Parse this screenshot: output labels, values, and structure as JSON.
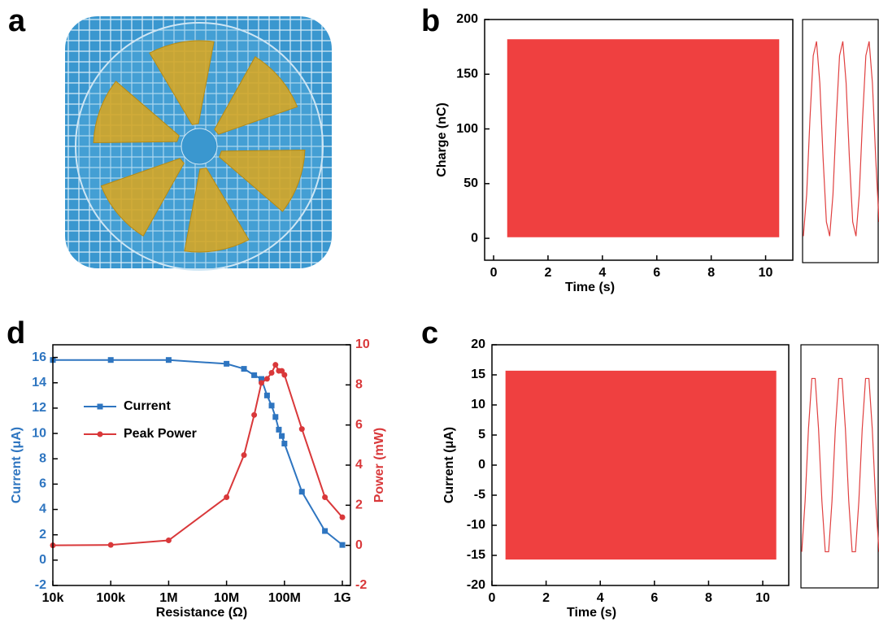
{
  "photo": {
    "label": "a"
  },
  "chart_data": [
    {
      "label": "b",
      "type": "band",
      "x": [
        0.5,
        10.5
      ],
      "upper": [
        182,
        182
      ],
      "lower": [
        1,
        1
      ],
      "color": "#ef4040",
      "xlim": [
        -0.33,
        11
      ],
      "xticks": [
        0,
        2,
        4,
        6,
        8,
        10
      ],
      "ylim": [
        -20,
        200
      ],
      "yticks": [
        0,
        50,
        100,
        150,
        200
      ],
      "xlabel": "Time (s)",
      "ylabel": "Charge (nC)",
      "inset": {
        "type": "line",
        "color": "#e04040",
        "values": [
          2,
          40,
          109,
          167,
          180,
          142,
          73,
          15,
          2,
          40,
          109,
          167,
          180,
          142,
          73,
          15,
          2,
          40,
          109,
          167,
          180,
          142,
          73,
          15
        ]
      }
    },
    {
      "label": "c",
      "type": "band",
      "x": [
        0.5,
        10.5
      ],
      "upper": [
        15.7,
        15.7
      ],
      "lower": [
        -15.7,
        -15.7
      ],
      "color": "#ef4040",
      "xlim": [
        0,
        10.96
      ],
      "xticks": [
        0,
        2,
        4,
        6,
        8,
        10
      ],
      "ylim": [
        -20,
        20
      ],
      "yticks": [
        -20,
        -15,
        -10,
        -5,
        0,
        5,
        10,
        15,
        20
      ],
      "xlabel": "Time (s)",
      "ylabel": "Current (μA)",
      "inset": {
        "type": "line",
        "color": "#e04040",
        "values": [
          -14.4,
          -6,
          6,
          14.4,
          14.4,
          6,
          -6,
          -14.4,
          -14.4,
          -6,
          6,
          14.4,
          14.4,
          6,
          -6,
          -14.4,
          -14.4,
          -6,
          6,
          14.4,
          14.4,
          6,
          -6,
          -14.4
        ]
      }
    },
    {
      "label": "d",
      "type": "line",
      "log_x": true,
      "x": [
        10000,
        100000,
        1000000,
        10000000,
        20000000,
        30000000,
        40000000,
        50000000,
        60000000,
        70000000,
        80000000,
        90000000,
        100000000,
        200000000,
        500000000,
        1000000000
      ],
      "xlim": [
        10000,
        1380000000
      ],
      "xticks": [
        {
          "value": 10000,
          "label": "10k"
        },
        {
          "value": 100000,
          "label": "100k"
        },
        {
          "value": 1000000,
          "label": "1M"
        },
        {
          "value": 10000000,
          "label": "10M"
        },
        {
          "value": 100000000,
          "label": "100M"
        },
        {
          "value": 1000000000,
          "label": "1G"
        }
      ],
      "ylim": [
        -2,
        17
      ],
      "yticks": [
        -2,
        0,
        2,
        4,
        6,
        8,
        10,
        12,
        14,
        16
      ],
      "y2lim": [
        -2,
        10
      ],
      "y2ticks": [
        -2,
        0,
        2,
        4,
        6,
        8,
        10
      ],
      "xlabel": "Resistance (Ω)",
      "ylabel": "Current (μA)",
      "y2label": "Power (mW)",
      "series": [
        {
          "name": "Current",
          "color": "#2e75c0",
          "marker": "square",
          "values": [
            15.8,
            15.8,
            15.8,
            15.5,
            15.1,
            14.6,
            14.3,
            13.0,
            12.2,
            11.3,
            10.3,
            9.8,
            9.2,
            5.4,
            2.3,
            1.2
          ]
        },
        {
          "name": "Peak Power",
          "color": "#d9383a",
          "marker": "circle",
          "axis": "y2",
          "values": [
            0,
            0.02,
            0.25,
            2.4,
            4.5,
            6.5,
            8.1,
            8.3,
            8.6,
            9.0,
            8.7,
            8.7,
            8.5,
            5.8,
            2.4,
            1.4
          ]
        }
      ]
    }
  ]
}
